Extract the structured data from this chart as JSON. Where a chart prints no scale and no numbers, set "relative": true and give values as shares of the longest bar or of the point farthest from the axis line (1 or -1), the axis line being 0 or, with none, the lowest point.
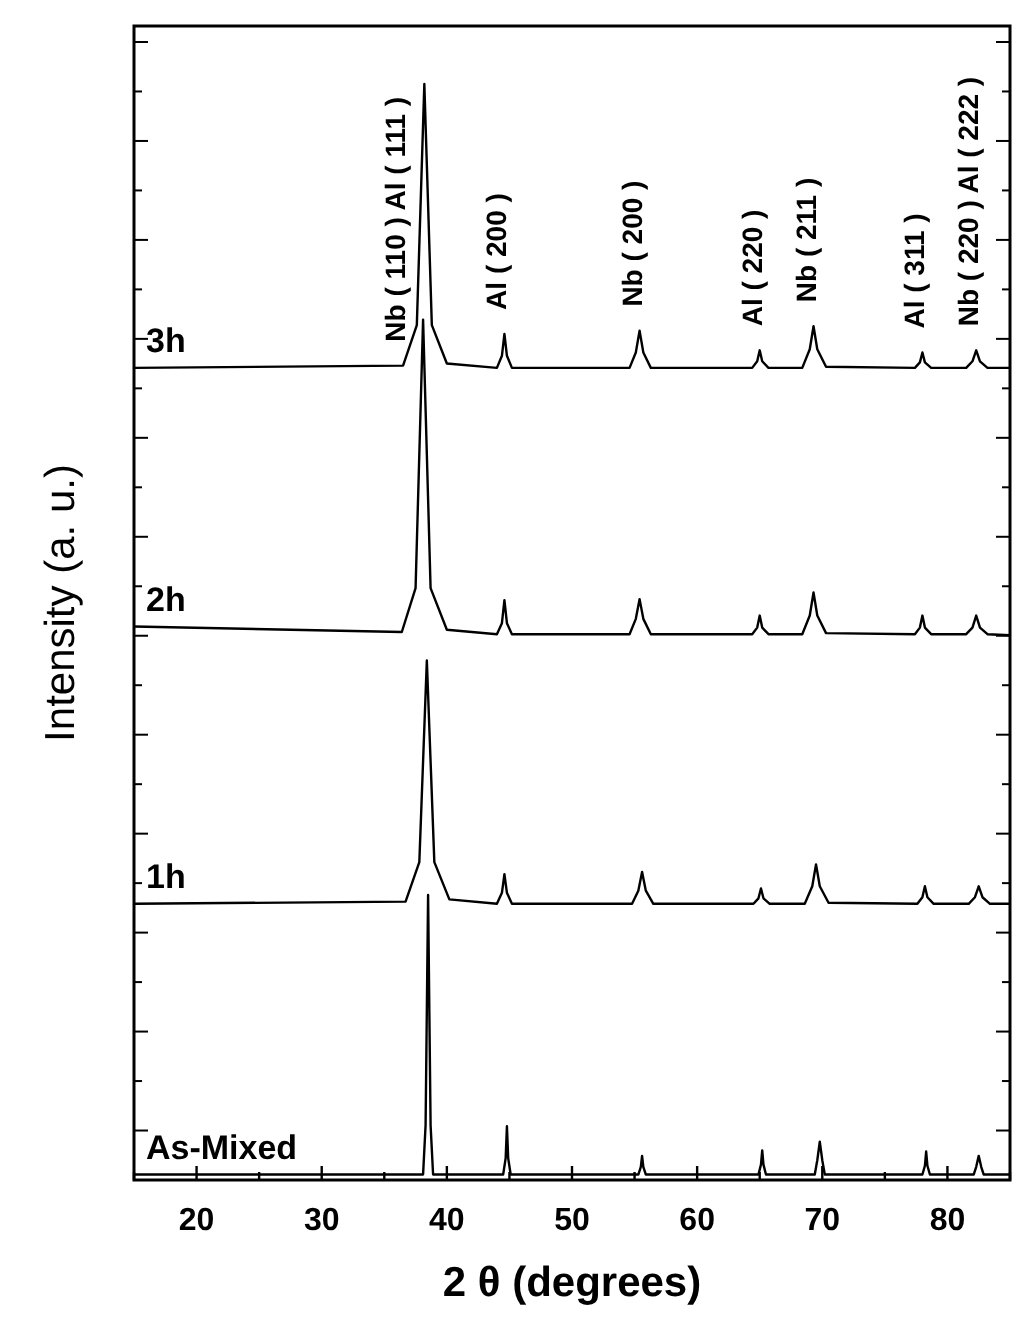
{
  "chart_data": {
    "type": "line",
    "relative": true,
    "xlabel": "2 θ (degrees)",
    "ylabel": "Intensity (a. u.)",
    "xlim": [
      15,
      85
    ],
    "xticks": [
      {
        "value": 15,
        "label": null
      },
      20,
      {
        "value": 25,
        "label": null
      },
      30,
      {
        "value": 35,
        "label": null
      },
      40,
      {
        "value": 45,
        "label": null
      },
      50,
      {
        "value": 55,
        "label": null
      },
      60,
      {
        "value": 65,
        "label": null
      },
      70,
      {
        "value": 75,
        "label": null
      },
      80,
      {
        "value": 85,
        "label": null
      }
    ],
    "grid": false,
    "legend": "left",
    "marker": "none",
    "line_style": "solid",
    "x": [
      15,
      36.5,
      37.6,
      38.2,
      38.8,
      40,
      44.0,
      44.4,
      44.6,
      44.8,
      45.2,
      54.6,
      55.1,
      55.4,
      55.7,
      56.3,
      64.4,
      64.8,
      65.0,
      65.2,
      65.7,
      68.4,
      69.0,
      69.3,
      69.6,
      70.3,
      77.4,
      77.8,
      78.0,
      78.2,
      78.7,
      81.5,
      82.0,
      82.3,
      82.6,
      83.2,
      85
    ],
    "series": [
      {
        "name": "3h",
        "color": "#000000",
        "values": [
          0.741,
          0.743,
          0.78,
          1.0,
          0.78,
          0.745,
          0.741,
          0.752,
          0.772,
          0.752,
          0.741,
          0.741,
          0.755,
          0.775,
          0.755,
          0.741,
          0.741,
          0.747,
          0.757,
          0.747,
          0.741,
          0.741,
          0.758,
          0.779,
          0.758,
          0.742,
          0.741,
          0.746,
          0.755,
          0.746,
          0.741,
          0.741,
          0.747,
          0.757,
          0.747,
          0.741,
          0.741
        ]
      },
      {
        "name": "2h",
        "color": "#000000",
        "x": [
          15,
          36.4,
          37.5,
          38.1,
          38.7,
          40,
          44.0,
          44.4,
          44.6,
          44.8,
          45.2,
          54.6,
          55.1,
          55.4,
          55.7,
          56.3,
          64.4,
          64.8,
          65.0,
          65.2,
          65.7,
          68.4,
          69.0,
          69.3,
          69.6,
          70.3,
          77.4,
          77.8,
          78.0,
          78.2,
          78.7,
          81.5,
          82.0,
          82.3,
          82.6,
          83.2,
          85
        ],
        "values": [
          0.505,
          0.5,
          0.54,
          0.785,
          0.54,
          0.502,
          0.498,
          0.508,
          0.529,
          0.508,
          0.498,
          0.498,
          0.512,
          0.53,
          0.512,
          0.498,
          0.498,
          0.504,
          0.515,
          0.504,
          0.498,
          0.498,
          0.515,
          0.536,
          0.515,
          0.499,
          0.498,
          0.504,
          0.515,
          0.504,
          0.498,
          0.498,
          0.504,
          0.515,
          0.504,
          0.498,
          0.497
        ]
      },
      {
        "name": "1h",
        "color": "#000000",
        "x": [
          15,
          36.7,
          37.8,
          38.4,
          39.0,
          40.2,
          44.0,
          44.4,
          44.6,
          44.8,
          45.2,
          54.8,
          55.3,
          55.6,
          55.9,
          56.5,
          64.5,
          64.9,
          65.1,
          65.3,
          65.8,
          68.6,
          69.2,
          69.5,
          69.8,
          70.5,
          77.6,
          78.0,
          78.2,
          78.4,
          78.9,
          81.7,
          82.2,
          82.5,
          82.8,
          83.4,
          85
        ],
        "values": [
          0.252,
          0.254,
          0.29,
          0.474,
          0.29,
          0.256,
          0.252,
          0.262,
          0.279,
          0.262,
          0.252,
          0.252,
          0.264,
          0.281,
          0.264,
          0.252,
          0.252,
          0.257,
          0.266,
          0.257,
          0.252,
          0.252,
          0.268,
          0.288,
          0.268,
          0.253,
          0.252,
          0.258,
          0.268,
          0.258,
          0.252,
          0.252,
          0.258,
          0.268,
          0.258,
          0.252,
          0.252
        ]
      },
      {
        "name": "As-Mixed",
        "color": "#000000",
        "x": [
          15,
          38.1,
          38.3,
          38.5,
          38.7,
          38.9,
          44.5,
          44.7,
          44.8,
          44.9,
          45.1,
          55.3,
          55.5,
          55.6,
          55.7,
          55.9,
          64.9,
          65.1,
          65.2,
          65.3,
          65.5,
          69.4,
          69.6,
          69.8,
          70.0,
          70.2,
          78.0,
          78.2,
          78.3,
          78.4,
          78.6,
          82.1,
          82.3,
          82.5,
          82.7,
          82.9,
          85
        ],
        "values": [
          0.005,
          0.005,
          0.05,
          0.26,
          0.05,
          0.005,
          0.005,
          0.02,
          0.049,
          0.02,
          0.005,
          0.005,
          0.012,
          0.022,
          0.012,
          0.005,
          0.005,
          0.014,
          0.027,
          0.014,
          0.005,
          0.005,
          0.018,
          0.035,
          0.018,
          0.005,
          0.005,
          0.013,
          0.026,
          0.013,
          0.005,
          0.005,
          0.012,
          0.022,
          0.012,
          0.005,
          0.005
        ]
      }
    ],
    "annotations": [
      {
        "text": "Nb ( 110 )  Al ( 111 )",
        "x": 36.5,
        "y": 0.743
      },
      {
        "text": "Al ( 200 )",
        "x": 44.6,
        "y": 0.772
      },
      {
        "text": "Nb ( 200 )",
        "x": 55.4,
        "y": 0.775
      },
      {
        "text": "Al ( 220 )",
        "x": 65.0,
        "y": 0.757
      },
      {
        "text": "Nb ( 211 )",
        "x": 69.3,
        "y": 0.779
      },
      {
        "text": "Al ( 311 )",
        "x": 78.0,
        "y": 0.755
      },
      {
        "text": "Nb ( 220 )  Al ( 222 )",
        "x": 82.3,
        "y": 0.757
      }
    ]
  }
}
